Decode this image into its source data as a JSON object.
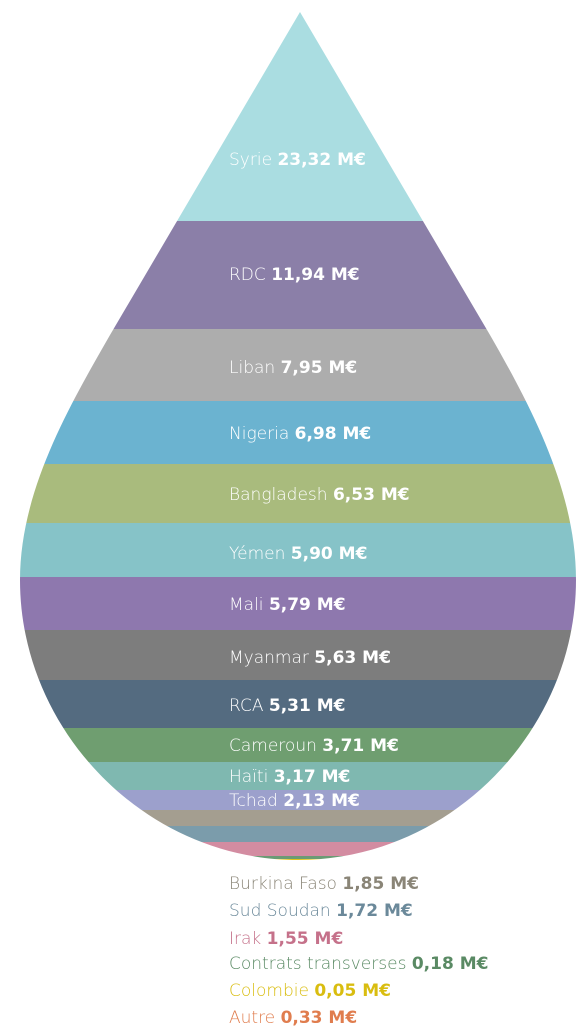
{
  "chart_data": {
    "type": "area",
    "unit": "M€",
    "slices": [
      {
        "country": "Syrie",
        "value_text": "23,32 M€",
        "value": 23.32,
        "color": "#aadde1",
        "value_color": "#ffffff"
      },
      {
        "country": "RDC",
        "value_text": "11,94 M€",
        "value": 11.94,
        "color": "#8b7fa8",
        "value_color": "#ffffff"
      },
      {
        "country": "Liban",
        "value_text": "7,95 M€",
        "value": 7.95,
        "color": "#adadad",
        "value_color": "#ffffff"
      },
      {
        "country": "Nigeria",
        "value_text": "6,98 M€",
        "value": 6.98,
        "color": "#6bb3d0",
        "value_color": "#ffffff"
      },
      {
        "country": "Bangladesh",
        "value_text": "6,53 M€",
        "value": 6.53,
        "color": "#a9bb7d",
        "value_color": "#ffffff"
      },
      {
        "country": "Yémen",
        "value_text": "5,90 M€",
        "value": 5.9,
        "color": "#86c3c8",
        "value_color": "#ffffff"
      },
      {
        "country": "Mali",
        "value_text": "5,79 M€",
        "value": 5.79,
        "color": "#8e78ae",
        "value_color": "#ffffff"
      },
      {
        "country": "Myanmar",
        "value_text": "5,63 M€",
        "value": 5.63,
        "color": "#7d7d7d",
        "value_color": "#ffffff"
      },
      {
        "country": "RCA",
        "value_text": "5,31 M€",
        "value": 5.31,
        "color": "#546b80",
        "value_color": "#ffffff"
      },
      {
        "country": "Cameroun",
        "value_text": "3,71 M€",
        "value": 3.71,
        "color": "#6f9e70",
        "value_color": "#ffffff"
      },
      {
        "country": "Haïti",
        "value_text": "3,17 M€",
        "value": 3.17,
        "color": "#7fb8b0",
        "value_color": "#ffffff"
      },
      {
        "country": "Tchad",
        "value_text": "2,13 M€",
        "value": 2.13,
        "color": "#9ca0cc",
        "value_color": "#ffffff"
      },
      {
        "country": "Burkina Faso",
        "value_text": "1,85 M€",
        "value": 1.85,
        "color": "#a49e90",
        "value_color": "#8a8577"
      },
      {
        "country": "Sud Soudan",
        "value_text": "1,72 M€",
        "value": 1.72,
        "color": "#7b9cab",
        "value_color": "#6b899a"
      },
      {
        "country": "Irak",
        "value_text": "1,55 M€",
        "value": 1.55,
        "color": "#d38ca1",
        "value_color": "#c5718a"
      },
      {
        "country": "Contrats transverses",
        "value_text": "0,18 M€",
        "value": 0.18,
        "color": "#6b9b75",
        "value_color": "#5a8a64"
      },
      {
        "country": "Colombie",
        "value_text": "0,05 M€",
        "value": 0.05,
        "color": "#e0c51a",
        "value_color": "#d9bd10"
      },
      {
        "country": "Autre",
        "value_text": "0,33 M€",
        "value": 0.33,
        "color": "#e8885a",
        "value_color": "#e07d4e"
      }
    ]
  }
}
